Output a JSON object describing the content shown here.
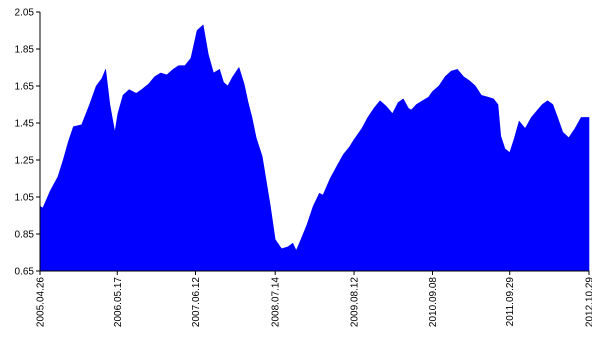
{
  "chart_data": {
    "type": "area",
    "title": "",
    "xlabel": "",
    "ylabel": "",
    "ylim": [
      0.65,
      2.05
    ],
    "grid": false,
    "legend": "none",
    "colors": {
      "fill": "#0000FF",
      "axis": "#000000",
      "background": "#FFFFFF"
    },
    "y_ticks": [
      "0.65",
      "0.85",
      "1.05",
      "1.25",
      "1.45",
      "1.65",
      "1.85",
      "2.05"
    ],
    "x_ticks": [
      {
        "label": "2005.04.26",
        "x": "2005-04-26"
      },
      {
        "label": "2006.05.17",
        "x": "2006-05-17"
      },
      {
        "label": "2007.06.12",
        "x": "2007-06-12"
      },
      {
        "label": "2008.07.14",
        "x": "2008-07-14"
      },
      {
        "label": "2009.08.12",
        "x": "2009-08-12"
      },
      {
        "label": "2010.09.08",
        "x": "2010-09-08"
      },
      {
        "label": "2011.09.29",
        "x": "2011-09-29"
      },
      {
        "label": "2012.10.29",
        "x": "2012-10-29"
      }
    ],
    "series": [
      {
        "x": [
          "2005-04-26",
          "2005-05-10",
          "2005-06-15",
          "2005-07-25",
          "2005-08-20",
          "2005-09-15",
          "2005-10-10",
          "2005-11-20",
          "2005-12-30",
          "2006-02-01",
          "2006-03-01",
          "2006-03-20",
          "2006-04-10",
          "2006-05-05",
          "2006-05-20",
          "2006-06-15",
          "2006-07-15",
          "2006-08-20",
          "2006-09-15",
          "2006-10-20",
          "2006-11-20",
          "2006-12-20",
          "2007-01-20",
          "2007-02-20",
          "2007-03-20",
          "2007-04-20",
          "2007-05-20",
          "2007-06-20",
          "2007-07-20",
          "2007-08-15",
          "2007-09-10",
          "2007-10-10",
          "2007-10-30",
          "2007-11-20",
          "2007-12-15",
          "2008-01-15",
          "2008-02-10",
          "2008-03-01",
          "2008-03-20",
          "2008-04-10",
          "2008-05-10",
          "2008-06-20",
          "2008-07-14",
          "2008-08-15",
          "2008-09-15",
          "2008-10-10",
          "2008-10-27",
          "2008-11-20",
          "2008-12-20",
          "2009-01-20",
          "2009-02-20",
          "2009-03-10",
          "2009-04-15",
          "2009-05-20",
          "2009-06-20",
          "2009-07-20",
          "2009-08-12",
          "2009-09-20",
          "2009-10-20",
          "2009-11-20",
          "2009-12-20",
          "2010-01-20",
          "2010-02-20",
          "2010-03-20",
          "2010-04-15",
          "2010-05-10",
          "2010-05-25",
          "2010-06-20",
          "2010-07-20",
          "2010-08-20",
          "2010-09-08",
          "2010-10-10",
          "2010-11-10",
          "2010-12-10",
          "2011-01-10",
          "2011-02-10",
          "2011-03-10",
          "2011-04-10",
          "2011-05-10",
          "2011-06-10",
          "2011-07-10",
          "2011-08-01",
          "2011-08-15",
          "2011-09-05",
          "2011-09-29",
          "2011-10-20",
          "2011-11-15",
          "2011-12-15",
          "2012-01-15",
          "2012-02-15",
          "2012-03-10",
          "2012-04-05",
          "2012-05-01",
          "2012-05-25",
          "2012-06-20",
          "2012-07-20",
          "2012-08-20",
          "2012-09-20",
          "2012-10-29"
        ],
        "values": [
          1.0,
          0.99,
          1.08,
          1.16,
          1.25,
          1.35,
          1.43,
          1.44,
          1.55,
          1.65,
          1.69,
          1.74,
          1.55,
          1.4,
          1.5,
          1.6,
          1.63,
          1.61,
          1.63,
          1.66,
          1.7,
          1.72,
          1.71,
          1.74,
          1.76,
          1.76,
          1.8,
          1.95,
          1.98,
          1.82,
          1.72,
          1.74,
          1.67,
          1.65,
          1.7,
          1.75,
          1.66,
          1.56,
          1.48,
          1.37,
          1.27,
          1.0,
          0.82,
          0.77,
          0.78,
          0.8,
          0.76,
          0.82,
          0.9,
          1.0,
          1.07,
          1.06,
          1.15,
          1.22,
          1.28,
          1.32,
          1.36,
          1.42,
          1.48,
          1.53,
          1.57,
          1.54,
          1.5,
          1.56,
          1.58,
          1.53,
          1.52,
          1.55,
          1.57,
          1.59,
          1.62,
          1.65,
          1.7,
          1.73,
          1.74,
          1.7,
          1.68,
          1.65,
          1.6,
          1.59,
          1.58,
          1.55,
          1.38,
          1.31,
          1.29,
          1.36,
          1.46,
          1.42,
          1.48,
          1.52,
          1.55,
          1.57,
          1.55,
          1.48,
          1.4,
          1.37,
          1.42,
          1.48,
          1.48
        ]
      }
    ]
  }
}
